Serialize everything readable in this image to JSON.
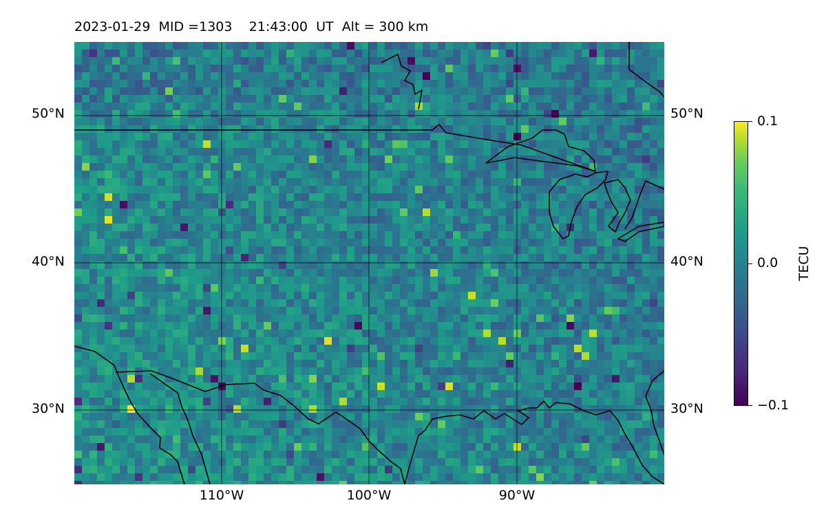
{
  "title": {
    "date": "2023-01-29",
    "mid": "MID =1303",
    "time": "21:43:00",
    "ut": "UT",
    "alt": "Alt = 300 km"
  },
  "axes": {
    "lat_ticks": [
      "50°N",
      "40°N",
      "30°N"
    ],
    "lon_ticks": [
      "110°W",
      "100°W",
      "90°W"
    ],
    "lat_values": [
      50,
      40,
      30
    ],
    "lon_values": [
      -110,
      -100,
      -90
    ],
    "lat_range": [
      25,
      55
    ],
    "lon_range": [
      -120,
      -80
    ]
  },
  "colorbar": {
    "label": "TECU",
    "ticks": [
      "0.1",
      "0.0",
      "−0.1"
    ],
    "range": [
      -0.1,
      0.1
    ],
    "colormap": "viridis"
  },
  "colors": {
    "background_mid": "#26828e",
    "coastline": "#000000",
    "grid": "#000000"
  }
}
